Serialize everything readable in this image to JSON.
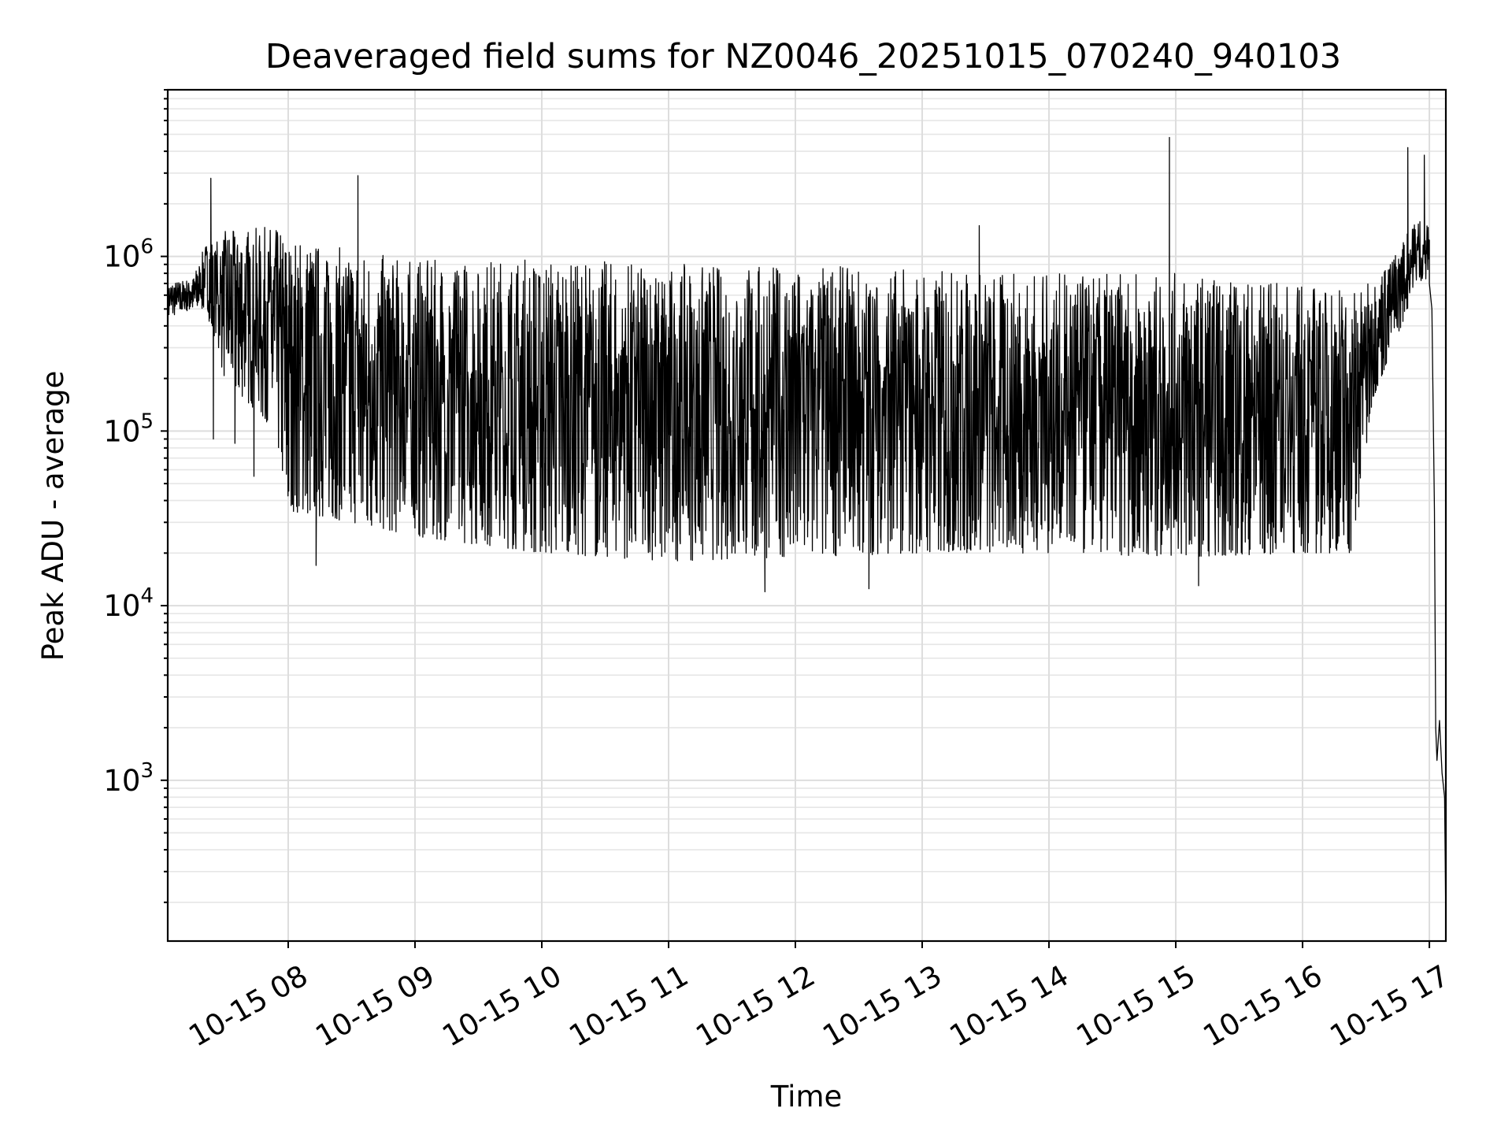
{
  "chart_data": {
    "type": "line",
    "title": "Deaveraged field sums for NZ0046_20251015_070240_940103",
    "xlabel": "Time",
    "ylabel": "Peak ADU - average",
    "yscale": "log",
    "xlim_hours": [
      7.05,
      17.13
    ],
    "ylim": [
      120,
      9000000
    ],
    "grid": true,
    "x_ticks": [
      {
        "hour": 8,
        "label": "10-15 08"
      },
      {
        "hour": 9,
        "label": "10-15 09"
      },
      {
        "hour": 10,
        "label": "10-15 10"
      },
      {
        "hour": 11,
        "label": "10-15 11"
      },
      {
        "hour": 12,
        "label": "10-15 12"
      },
      {
        "hour": 13,
        "label": "10-15 13"
      },
      {
        "hour": 14,
        "label": "10-15 14"
      },
      {
        "hour": 15,
        "label": "10-15 15"
      },
      {
        "hour": 16,
        "label": "10-15 16"
      },
      {
        "hour": 17,
        "label": "10-15 17"
      }
    ],
    "y_ticks": [
      {
        "value": 1000,
        "base": "10",
        "exp": "3"
      },
      {
        "value": 10000,
        "base": "10",
        "exp": "4"
      },
      {
        "value": 100000,
        "base": "10",
        "exp": "5"
      },
      {
        "value": 1000000,
        "base": "10",
        "exp": "6"
      }
    ],
    "envelope": [
      {
        "hour": 7.05,
        "upper": 700000,
        "lower": 450000
      },
      {
        "hour": 7.25,
        "upper": 750000,
        "lower": 500000
      },
      {
        "hour": 7.35,
        "upper": 1200000,
        "lower": 500000
      },
      {
        "hour": 7.5,
        "upper": 1400000,
        "lower": 200000
      },
      {
        "hour": 7.9,
        "upper": 1500000,
        "lower": 100000
      },
      {
        "hour": 8.0,
        "upper": 1300000,
        "lower": 35000
      },
      {
        "hour": 8.5,
        "upper": 1100000,
        "lower": 30000
      },
      {
        "hour": 9.0,
        "upper": 950000,
        "lower": 25000
      },
      {
        "hour": 10.0,
        "upper": 1000000,
        "lower": 20000
      },
      {
        "hour": 11.0,
        "upper": 900000,
        "lower": 18000
      },
      {
        "hour": 12.0,
        "upper": 900000,
        "lower": 19000
      },
      {
        "hour": 13.0,
        "upper": 850000,
        "lower": 20000
      },
      {
        "hour": 14.0,
        "upper": 800000,
        "lower": 20000
      },
      {
        "hour": 15.0,
        "upper": 800000,
        "lower": 19000
      },
      {
        "hour": 16.0,
        "upper": 700000,
        "lower": 20000
      },
      {
        "hour": 16.4,
        "upper": 700000,
        "lower": 20000
      },
      {
        "hour": 16.55,
        "upper": 700000,
        "lower": 150000
      },
      {
        "hour": 16.75,
        "upper": 1100000,
        "lower": 350000
      },
      {
        "hour": 16.9,
        "upper": 1700000,
        "lower": 700000
      },
      {
        "hour": 17.0,
        "upper": 1500000,
        "lower": 700000
      }
    ],
    "spikes": [
      {
        "hour": 7.39,
        "value": 2800000
      },
      {
        "hour": 8.55,
        "value": 2900000
      },
      {
        "hour": 13.45,
        "value": 1500000
      },
      {
        "hour": 14.95,
        "value": 4800000
      },
      {
        "hour": 16.83,
        "value": 4200000
      },
      {
        "hour": 16.96,
        "value": 3800000
      },
      {
        "hour": 7.41,
        "value": 90000
      },
      {
        "hour": 7.58,
        "value": 85000
      },
      {
        "hour": 7.73,
        "value": 55000
      },
      {
        "hour": 8.22,
        "value": 17000
      },
      {
        "hour": 11.76,
        "value": 12000
      },
      {
        "hour": 12.58,
        "value": 12500
      },
      {
        "hour": 15.18,
        "value": 13000
      }
    ],
    "tail": [
      {
        "hour": 17.0,
        "value": 700000
      },
      {
        "hour": 17.02,
        "value": 500000
      },
      {
        "hour": 17.04,
        "value": 35000
      },
      {
        "hour": 17.05,
        "value": 2000
      },
      {
        "hour": 17.06,
        "value": 1300
      },
      {
        "hour": 17.08,
        "value": 2200
      },
      {
        "hour": 17.1,
        "value": 1100
      },
      {
        "hour": 17.12,
        "value": 800
      },
      {
        "hour": 17.13,
        "value": 150
      }
    ]
  }
}
